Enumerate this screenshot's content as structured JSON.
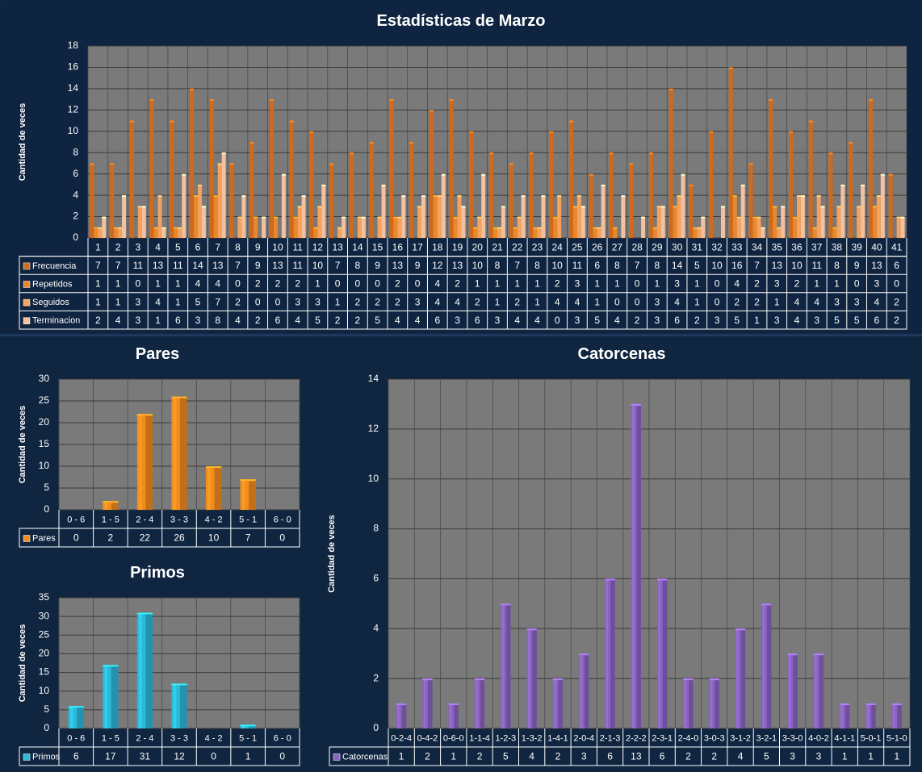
{
  "colors": {
    "background": "#0f2540",
    "plot_area": "#7a7a7a",
    "frecuencia": "#d06a1a",
    "repetidos": "#e8892e",
    "seguidos": "#f3a35f",
    "terminacion": "#f2c1a0",
    "pares": "#f28c1e",
    "primos": "#2cb8d8",
    "catorcenas": "#8a63c0"
  },
  "chart_data": [
    {
      "id": "main",
      "type": "bar",
      "title": "Estadísticas de Marzo",
      "ylabel": "Cantidad de veces",
      "ylim": [
        0,
        18
      ],
      "yticks": [
        0,
        2,
        4,
        6,
        8,
        10,
        12,
        14,
        16,
        18
      ],
      "categories": [
        "1",
        "2",
        "3",
        "4",
        "5",
        "6",
        "7",
        "8",
        "9",
        "10",
        "11",
        "12",
        "13",
        "14",
        "15",
        "16",
        "17",
        "18",
        "19",
        "20",
        "21",
        "22",
        "23",
        "24",
        "25",
        "26",
        "27",
        "28",
        "29",
        "30",
        "31",
        "32",
        "33",
        "34",
        "35",
        "36",
        "37",
        "38",
        "39",
        "40",
        "41"
      ],
      "series": [
        {
          "name": "Frecuencia",
          "color_key": "frecuencia",
          "values": [
            7,
            7,
            11,
            13,
            11,
            14,
            13,
            7,
            9,
            13,
            11,
            10,
            7,
            8,
            9,
            13,
            9,
            12,
            13,
            10,
            8,
            7,
            8,
            10,
            11,
            6,
            8,
            7,
            8,
            14,
            5,
            10,
            16,
            7,
            13,
            10,
            11,
            8,
            9,
            13,
            6
          ]
        },
        {
          "name": "Repetidos",
          "color_key": "repetidos",
          "values": [
            1,
            1,
            0,
            1,
            1,
            4,
            4,
            0,
            2,
            2,
            2,
            1,
            0,
            0,
            0,
            2,
            0,
            4,
            2,
            1,
            1,
            1,
            1,
            2,
            3,
            1,
            1,
            0,
            1,
            3,
            1,
            0,
            4,
            2,
            3,
            2,
            1,
            1,
            0,
            3,
            0
          ]
        },
        {
          "name": "Seguidos",
          "color_key": "seguidos",
          "values": [
            1,
            1,
            3,
            4,
            1,
            5,
            7,
            2,
            0,
            0,
            3,
            3,
            1,
            2,
            2,
            2,
            3,
            4,
            4,
            2,
            1,
            2,
            1,
            4,
            4,
            1,
            0,
            0,
            3,
            4,
            1,
            0,
            2,
            2,
            1,
            4,
            4,
            3,
            3,
            4,
            2
          ]
        },
        {
          "name": "Terminacion",
          "color_key": "terminacion",
          "values": [
            2,
            4,
            3,
            1,
            6,
            3,
            8,
            4,
            2,
            6,
            4,
            5,
            2,
            2,
            5,
            4,
            4,
            6,
            3,
            6,
            3,
            4,
            4,
            0,
            3,
            5,
            4,
            2,
            3,
            6,
            2,
            3,
            5,
            1,
            3,
            4,
            3,
            5,
            5,
            6,
            2
          ]
        }
      ]
    },
    {
      "id": "pares",
      "type": "bar",
      "title": "Pares",
      "ylabel": "Cantidad de veces",
      "ylim": [
        0,
        30
      ],
      "yticks": [
        0,
        5,
        10,
        15,
        20,
        25,
        30
      ],
      "categories": [
        "0 - 6",
        "1 - 5",
        "2 - 4",
        "3 - 3",
        "4 - 2",
        "5 - 1",
        "6 - 0"
      ],
      "series": [
        {
          "name": "Pares",
          "color_key": "pares",
          "values": [
            0,
            2,
            22,
            26,
            10,
            7,
            0
          ]
        }
      ]
    },
    {
      "id": "primos",
      "type": "bar",
      "title": "Primos",
      "ylabel": "Cantidad de veces",
      "ylim": [
        0,
        35
      ],
      "yticks": [
        0,
        5,
        10,
        15,
        20,
        25,
        30,
        35
      ],
      "categories": [
        "0 - 6",
        "1 - 5",
        "2 - 4",
        "3 - 3",
        "4 - 2",
        "5 - 1",
        "6 - 0"
      ],
      "series": [
        {
          "name": "Primos",
          "color_key": "primos",
          "values": [
            6,
            17,
            31,
            12,
            0,
            1,
            0
          ]
        }
      ]
    },
    {
      "id": "catorcenas",
      "type": "bar",
      "title": "Catorcenas",
      "ylabel": "Cantidad de veces",
      "ylim": [
        0,
        14
      ],
      "yticks": [
        0,
        2,
        4,
        6,
        8,
        10,
        12,
        14
      ],
      "categories": [
        "0-2-4",
        "0-4-2",
        "0-6-0",
        "1-1-4",
        "1-2-3",
        "1-3-2",
        "1-4-1",
        "2-0-4",
        "2-1-3",
        "2-2-2",
        "2-3-1",
        "2-4-0",
        "3-0-3",
        "3-1-2",
        "3-2-1",
        "3-3-0",
        "4-0-2",
        "4-1-1",
        "5-0-1",
        "5-1-0"
      ],
      "series": [
        {
          "name": "Catorcenas",
          "color_key": "catorcenas",
          "values": [
            1,
            2,
            1,
            2,
            5,
            4,
            2,
            3,
            6,
            13,
            6,
            2,
            2,
            4,
            5,
            3,
            3,
            1,
            1,
            1
          ]
        }
      ]
    }
  ]
}
